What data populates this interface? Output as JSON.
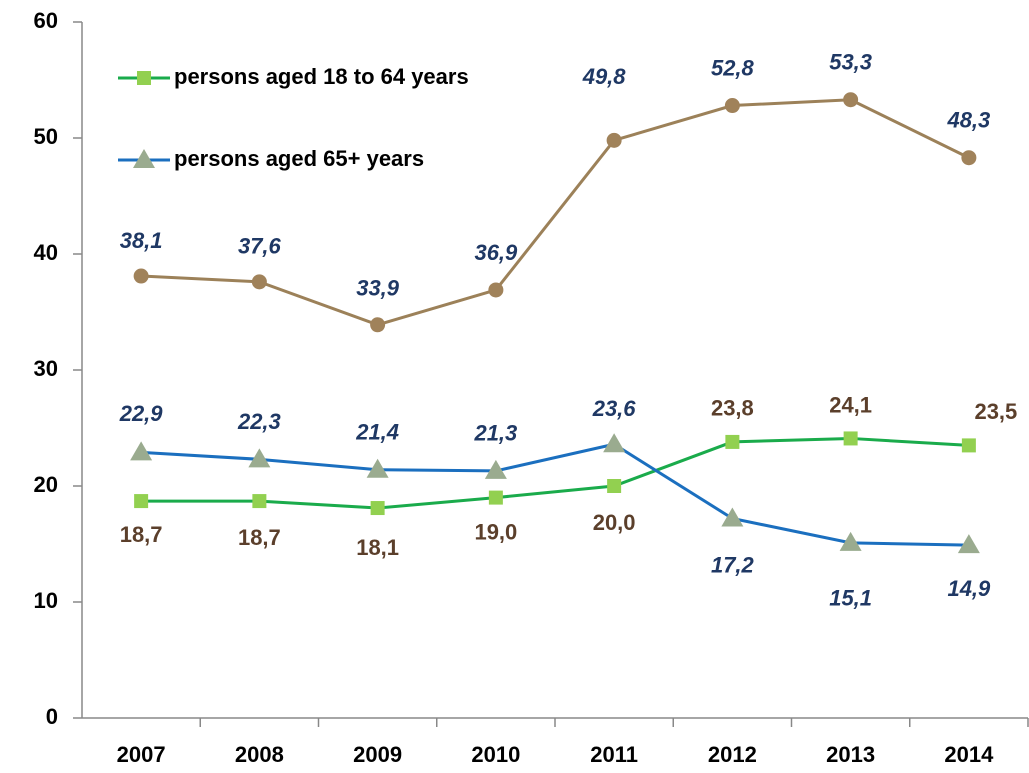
{
  "chart_data": {
    "type": "line",
    "categories": [
      "2007",
      "2008",
      "2009",
      "2010",
      "2011",
      "2012",
      "2013",
      "2014"
    ],
    "series": [
      {
        "name": "persons aged 18 to 64 years",
        "color": "#1aab4b",
        "marker": "square",
        "marker_color": "#92d050",
        "label_color": "#5b3f2b",
        "label_style": "normal",
        "values": [
          18.7,
          18.7,
          18.1,
          19.0,
          20.0,
          23.8,
          24.1,
          23.5
        ],
        "value_labels": [
          "18,7",
          "18,7",
          "18,1",
          "19,0",
          "20,0",
          "23,8",
          "24,1",
          "23,5"
        ]
      },
      {
        "name": "persons aged 65+ years",
        "color": "#1b6fbf",
        "marker": "triangle",
        "marker_color": "#9aab8f",
        "label_color": "#1f3864",
        "label_style": "italic",
        "values": [
          22.9,
          22.3,
          21.4,
          21.3,
          23.6,
          17.2,
          15.1,
          14.9
        ],
        "value_labels": [
          "22,9",
          "22,3",
          "21,4",
          "21,3",
          "23,6",
          "17,2",
          "15,1",
          "14,9"
        ]
      },
      {
        "color": "#9c8159",
        "marker": "circle",
        "marker_color": "#a0825a",
        "label_color": "#1f3864",
        "label_style": "italic",
        "values": [
          38.1,
          37.6,
          33.9,
          36.9,
          49.8,
          52.8,
          53.3,
          48.3
        ],
        "value_labels": [
          "38,1",
          "37,6",
          "33,9",
          "36,9",
          "49,8",
          "52,8",
          "53,3",
          "48,3"
        ]
      }
    ],
    "ylim": [
      0,
      60
    ],
    "yticks": [
      0,
      10,
      20,
      30,
      40,
      50,
      60
    ],
    "grid": false,
    "legend": "upper left"
  }
}
